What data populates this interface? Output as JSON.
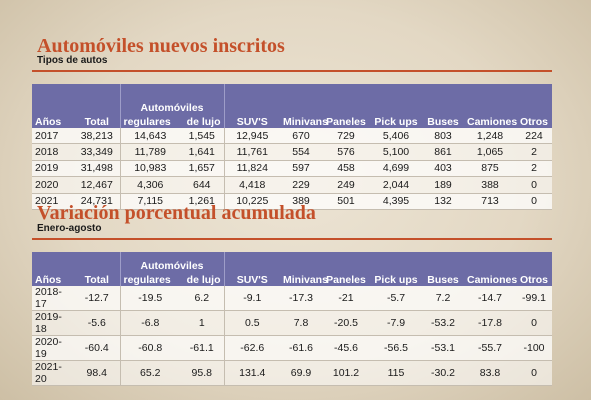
{
  "section1": {
    "title": "Automóviles nuevos inscritos",
    "subtitle": "Tipos de  autos",
    "headers": {
      "anos": "Años",
      "total": "Total",
      "group": "Automóviles",
      "regulares": "regulares",
      "lujo": "de lujo",
      "suvs": "SUV'S",
      "minivans": "Minivans",
      "paneles": "Paneles",
      "pickups": "Pick ups",
      "buses": "Buses",
      "camiones": "Camiones",
      "otros": "Otros"
    },
    "rows": [
      [
        "2017",
        "38,213",
        "14,643",
        "1,545",
        "12,945",
        "670",
        "729",
        "5,406",
        "803",
        "1,248",
        "224"
      ],
      [
        "2018",
        "33,349",
        "11,789",
        "1,641",
        "11,761",
        "554",
        "576",
        "5,100",
        "861",
        "1,065",
        "2"
      ],
      [
        "2019",
        "31,498",
        "10,983",
        "1,657",
        "11,824",
        "597",
        "458",
        "4,699",
        "403",
        "875",
        "2"
      ],
      [
        "2020",
        "12,467",
        "4,306",
        "644",
        "4,418",
        "229",
        "249",
        "2,044",
        "189",
        "388",
        "0"
      ],
      [
        "2021",
        "24,731",
        "7,115",
        "1,261",
        "10,225",
        "389",
        "501",
        "4,395",
        "132",
        "713",
        "0"
      ]
    ]
  },
  "section2": {
    "title": "Variación porcentual acumulada",
    "subtitle": "Enero-agosto",
    "headers": {
      "anos": "Años",
      "total": "Total",
      "group": "Automóviles",
      "regulares": "regulares",
      "lujo": "de lujo",
      "suvs": "SUV'S",
      "minivans": "Minivans",
      "paneles": "Paneles",
      "pickups": "Pick ups",
      "buses": "Buses",
      "camiones": "Camiones",
      "otros": "Otros"
    },
    "rows": [
      [
        "2018-17",
        "-12.7",
        "-19.5",
        "6.2",
        "-9.1",
        "-17.3",
        "-21",
        "-5.7",
        "7.2",
        "-14.7",
        "-99.1"
      ],
      [
        "2019-18",
        "-5.6",
        "-6.8",
        "1",
        "0.5",
        "7.8",
        "-20.5",
        "-7.9",
        "-53.2",
        "-17.8",
        "0"
      ],
      [
        "2020-19",
        "-60.4",
        "-60.8",
        "-61.1",
        "-62.6",
        "-61.6",
        "-45.6",
        "-56.5",
        "-53.1",
        "-55.7",
        "-100"
      ],
      [
        "2021-20",
        "98.4",
        "65.2",
        "95.8",
        "131.4",
        "69.9",
        "101.2",
        "115",
        "-30.2",
        "83.8",
        "0"
      ]
    ]
  }
}
